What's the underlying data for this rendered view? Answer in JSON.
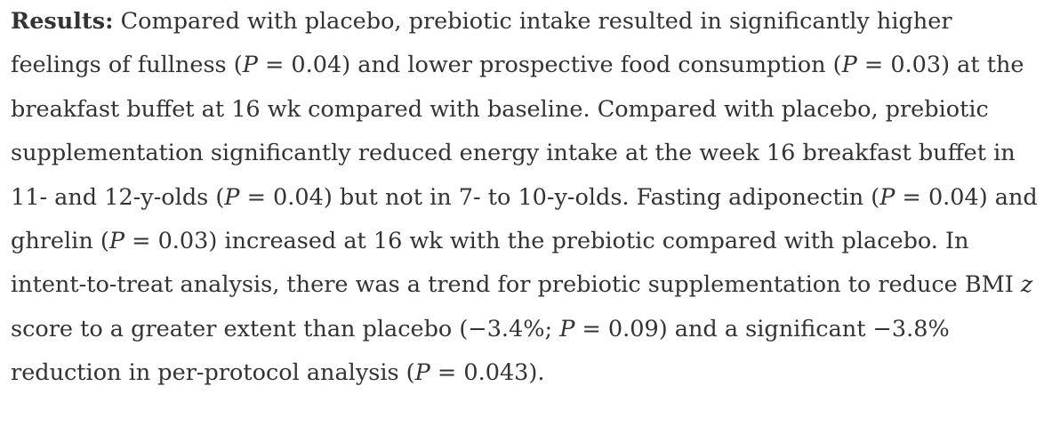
{
  "paragraph": {
    "label": "Results:",
    "runs": [
      "Compared with placebo, prebiotic intake resulted in significantly higher feelings of fullness (",
      "P",
      " = 0.04) and lower prospective food consumption (",
      "P",
      " = 0.03) at the breakfast buffet at 16 wk compared with baseline. Compared with placebo, prebiotic supplementation significantly reduced energy intake at the week 16 breakfast buffet in 11- and 12-y-olds (",
      "P",
      " = 0.04) but not in 7- to 10-y-olds. Fasting adiponectin (",
      "P",
      " = 0.04) and ghrelin (",
      "P",
      " = 0.03) increased at 16 wk with the prebiotic compared with placebo. In intent-to-treat analysis, there was a trend for prebiotic supplementation to reduce BMI ",
      "z",
      " score to a greater extent than placebo (−3.4%; ",
      "P",
      " = 0.09) and a significant −3.8% reduction in per-protocol analysis (",
      "P",
      " = 0.043)."
    ]
  }
}
